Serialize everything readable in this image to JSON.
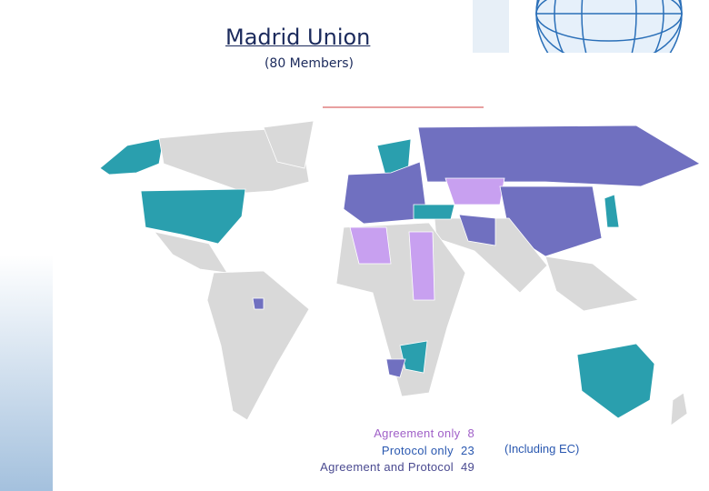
{
  "header": {
    "title": "Madrid Union",
    "subtitle": "(80 Members)"
  },
  "legend": {
    "items": [
      {
        "label": "Agreement only",
        "count": 8
      },
      {
        "label": "Protocol only",
        "count": 23
      },
      {
        "label": "Agreement and Protocol",
        "count": 49
      }
    ],
    "note": "(Including EC)"
  }
}
